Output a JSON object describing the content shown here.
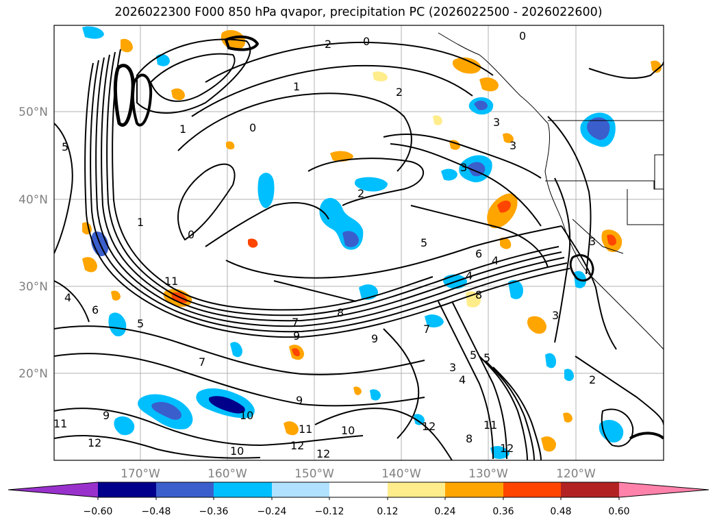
{
  "title": "2026022300 F000 850 hPa qvapor, precipitation PC (2026022500 - 2026022600)",
  "axes": {
    "lat_labels": [
      "50°N",
      "40°N",
      "30°N",
      "20°N"
    ],
    "lon_labels": [
      "170°W",
      "160°W",
      "150°W",
      "140°W",
      "130°W",
      "120°W"
    ]
  },
  "colorbar": {
    "ticks": [
      "−0.60",
      "−0.48",
      "−0.36",
      "−0.24",
      "−0.12",
      "0.12",
      "0.24",
      "0.36",
      "0.48",
      "0.60"
    ],
    "colors": [
      "#9932cc",
      "#00008b",
      "#3a5fcd",
      "#00bfff",
      "#b0e2ff",
      "#ffffff",
      "#ffec8b",
      "#ffa500",
      "#ff4500",
      "#b22222",
      "#ff82ab"
    ]
  },
  "contour_labels": [
    "0",
    "1",
    "2",
    "3",
    "4",
    "5",
    "6",
    "7",
    "8",
    "9",
    "10",
    "11",
    "12"
  ],
  "colors": {
    "gridline": "#b0b0b0",
    "contour": "#000000",
    "tick_label": "#808080"
  }
}
